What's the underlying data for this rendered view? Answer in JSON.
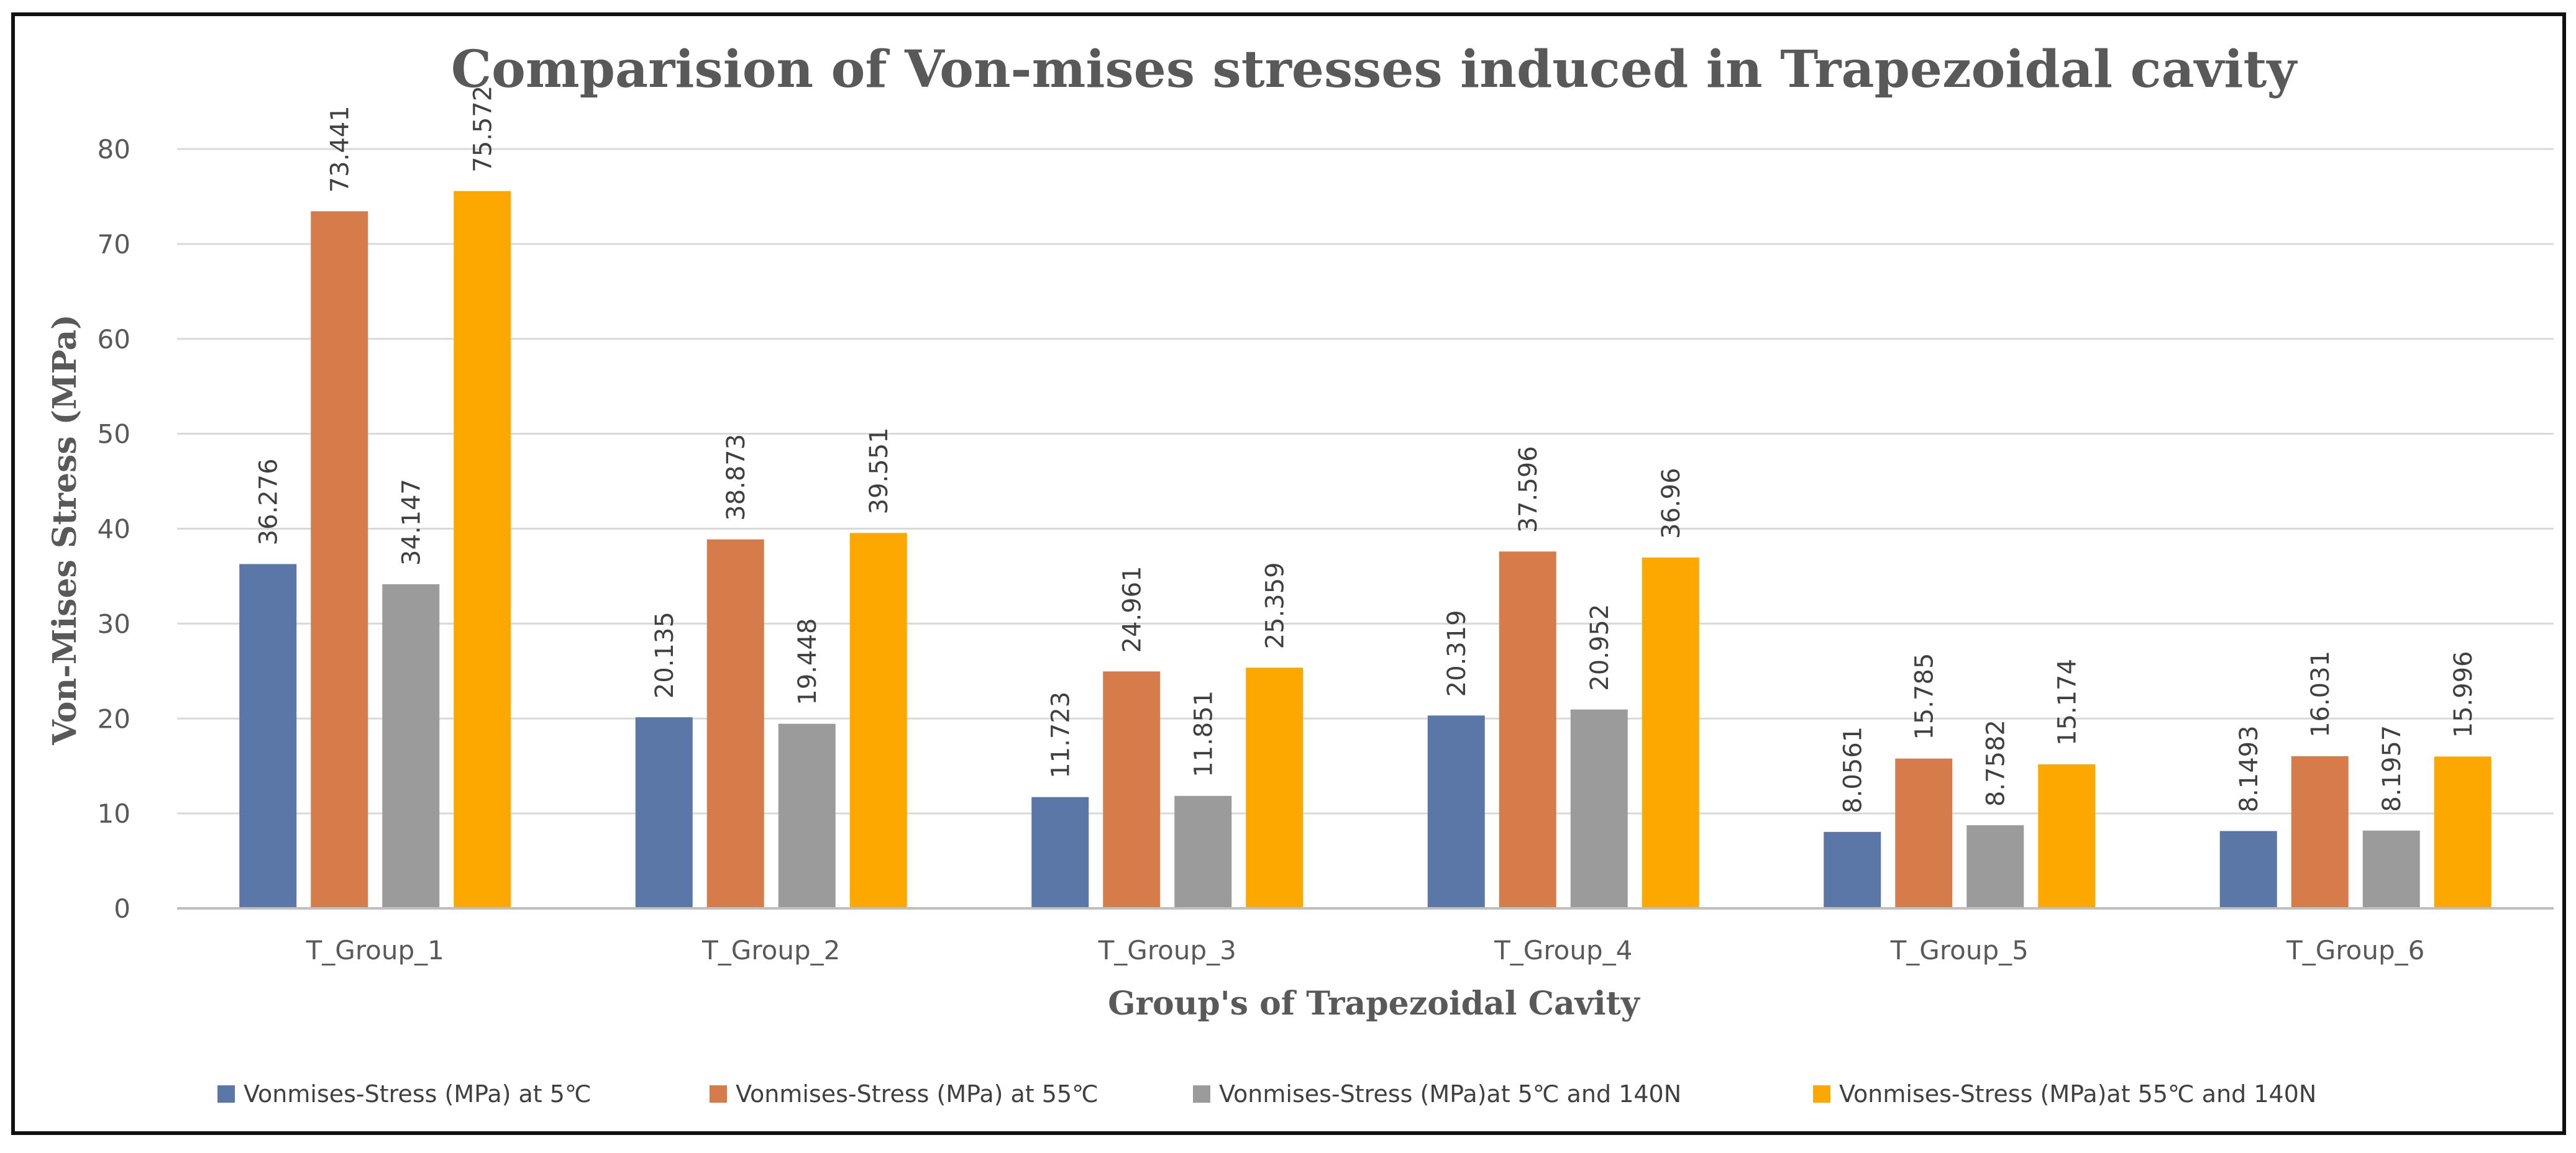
{
  "chart_data": {
    "type": "bar",
    "title": "Comparision of Von-mises stresses induced in Trapezoidal cavity",
    "xlabel": "Group's of Trapezoidal Cavity",
    "ylabel": "Von-Mises Stress (MPa)",
    "ylim": [
      0,
      80
    ],
    "yticks": [
      "0",
      "10",
      "20",
      "30",
      "40",
      "50",
      "60",
      "70",
      "80"
    ],
    "grid": true,
    "legend_position": "bottom",
    "categories": [
      "T_Group_1",
      "T_Group_2",
      "T_Group_3",
      "T_Group_4",
      "T_Group_5",
      "T_Group_6"
    ],
    "series": [
      {
        "name": "Vonmises-Stress (MPa) at 5℃",
        "color": "#5b77a8",
        "values": [
          36.276,
          20.135,
          11.723,
          20.319,
          8.0561,
          8.1493
        ],
        "labels": [
          "36.276",
          "20.135",
          "11.723",
          "20.319",
          "8.0561",
          "8.1493"
        ]
      },
      {
        "name": "Vonmises-Stress (MPa) at 55℃",
        "color": "#d67c4b",
        "values": [
          73.441,
          38.873,
          24.961,
          37.596,
          15.785,
          16.031
        ],
        "labels": [
          "73.441",
          "38.873",
          "24.961",
          "37.596",
          "15.785",
          "16.031"
        ]
      },
      {
        "name": "Vonmises-Stress (MPa)at 5℃ and 140N",
        "color": "#9b9b9b",
        "values": [
          34.147,
          19.448,
          11.851,
          20.952,
          8.7582,
          8.1957
        ],
        "labels": [
          "34.147",
          "19.448",
          "11.851",
          "20.952",
          "8.7582",
          "8.1957"
        ]
      },
      {
        "name": "Vonmises-Stress (MPa)at 55℃ and 140N",
        "color": "#fda800",
        "values": [
          75.572,
          39.551,
          25.359,
          36.96,
          15.174,
          15.996
        ],
        "labels": [
          "75.572",
          "39.551",
          "25.359",
          "36.96",
          "15.174",
          "15.996"
        ]
      }
    ]
  }
}
